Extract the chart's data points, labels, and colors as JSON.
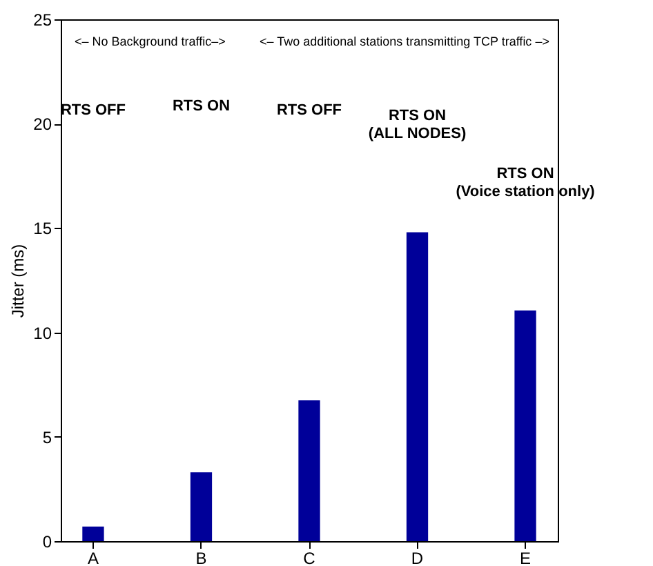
{
  "chart_data": {
    "type": "bar",
    "ylabel": "Jitter (ms)",
    "categories": [
      "A",
      "B",
      "C",
      "D",
      "E"
    ],
    "values": [
      0.7,
      3.3,
      6.75,
      14.8,
      11.05
    ],
    "color": "#000099",
    "ylim": [
      0,
      25
    ],
    "yticks": [
      0,
      5,
      10,
      15,
      20,
      25
    ],
    "grid": false,
    "annotations": [
      "<– No Background traffic–>",
      "<– Two additional stations transmitting TCP traffic –>",
      "RTS OFF",
      "RTS ON",
      "RTS OFF",
      "RTS ON\n(ALL NODES)",
      "RTS ON\n(Voice station only)"
    ]
  }
}
